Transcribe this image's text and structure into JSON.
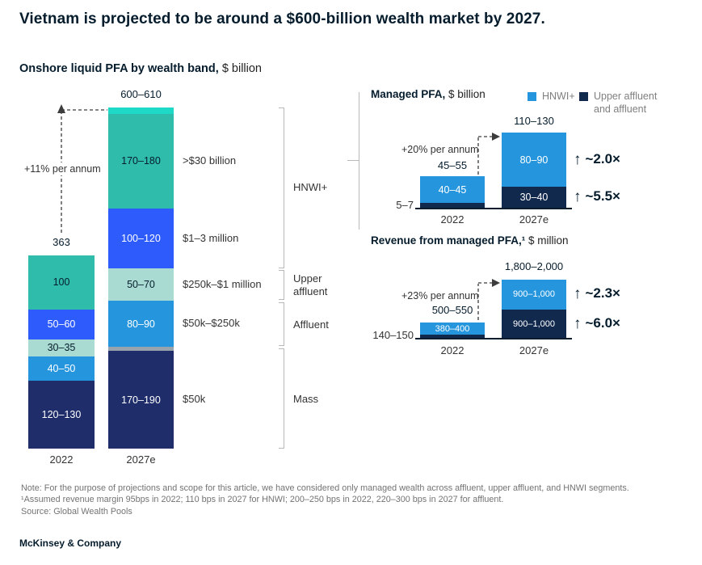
{
  "title": "Vietnam is projected to be around a $600-billion wealth market by 2027.",
  "subtitle": {
    "label": "Onshore liquid PFA by wealth band,",
    "unit": " $ billion"
  },
  "colors": {
    "teal": "#2fbcab",
    "bright_cyan": "#1ed9c6",
    "blue": "#2e5bfc",
    "mid_blue": "#2596dd",
    "pale_teal": "#a9dbd3",
    "gray": "#97a3ad",
    "navy": "#1f2d6b",
    "dark_navy": "#12294e"
  },
  "chart_data": [
    {
      "id": "onshore-liquid-pfa",
      "type": "bar",
      "stacked": true,
      "title": "Onshore liquid PFA by wealth band, $ billion",
      "growth_annotation": "+11% per annum",
      "categories": [
        "2022",
        "2027e"
      ],
      "bars": [
        {
          "category": "2022",
          "total_label": "363",
          "segments": [
            {
              "label": "120–130",
              "value": 125,
              "color": "navy",
              "text": "light"
            },
            {
              "label": "40–50",
              "value": 45,
              "color": "mid_blue",
              "text": "light"
            },
            {
              "label": "30–35",
              "value": 32,
              "color": "pale_teal",
              "text": "dark"
            },
            {
              "label": "50–60",
              "value": 55,
              "color": "blue",
              "text": "light"
            },
            {
              "label": "100",
              "value": 100,
              "color": "teal",
              "text": "dark"
            }
          ]
        },
        {
          "category": "2027e",
          "total_label": "600–610",
          "segments": [
            {
              "label": "170–190",
              "value": 180,
              "color": "navy",
              "text": "light",
              "band": "$50k"
            },
            {
              "label": "",
              "value": 8,
              "color": "gray"
            },
            {
              "label": "80–90",
              "value": 85,
              "color": "mid_blue",
              "text": "light",
              "band": "$50k–$250k"
            },
            {
              "label": "50–70",
              "value": 60,
              "color": "pale_teal",
              "text": "dark",
              "band": "$250k–$1 million"
            },
            {
              "label": "100–120",
              "value": 110,
              "color": "blue",
              "text": "light",
              "band": "$1–3 million"
            },
            {
              "label": "170–180",
              "value": 175,
              "color": "teal",
              "text": "dark",
              "band": ">$30 billion"
            },
            {
              "label": "",
              "value": 12,
              "color": "bright_cyan"
            }
          ]
        }
      ],
      "band_labels": [
        ">$30 billion",
        "$1–3 million",
        "$250k–$1 million",
        "$50k–$250k",
        "$50k"
      ],
      "group_brackets": [
        "HNWI+",
        "Upper affluent",
        "Affluent",
        "Mass"
      ]
    },
    {
      "id": "managed-pfa",
      "type": "bar",
      "stacked": true,
      "title": "Managed PFA,",
      "unit": " $ billion",
      "legend": [
        {
          "label": "HNWI+",
          "color": "mid_blue"
        },
        {
          "label": "Upper affluent and affluent",
          "color": "dark_navy"
        }
      ],
      "growth_annotation": "+20% per annum",
      "categories": [
        "2022",
        "2027e"
      ],
      "bars": [
        {
          "category": "2022",
          "total_label": "45–55",
          "outside_label": "5–7",
          "segments": [
            {
              "label": "",
              "value": 6,
              "color": "dark_navy"
            },
            {
              "label": "40–45",
              "value": 42,
              "color": "mid_blue",
              "text": "light"
            }
          ]
        },
        {
          "category": "2027e",
          "total_label": "110–130",
          "segments": [
            {
              "label": "30–40",
              "value": 35,
              "color": "dark_navy",
              "text": "light"
            },
            {
              "label": "80–90",
              "value": 85,
              "color": "mid_blue",
              "text": "light"
            }
          ]
        }
      ],
      "multipliers": [
        "~2.0×",
        "~5.5×"
      ]
    },
    {
      "id": "revenue-managed-pfa",
      "type": "bar",
      "stacked": true,
      "title": "Revenue from managed PFA,¹",
      "unit": " $ million",
      "growth_annotation": "+23% per annum",
      "categories": [
        "2022",
        "2027e"
      ],
      "bars": [
        {
          "category": "2022",
          "total_label": "500–550",
          "outside_label": "140–150",
          "segments": [
            {
              "label": "",
              "value": 145,
              "color": "dark_navy"
            },
            {
              "label": "380–400",
              "value": 390,
              "color": "mid_blue",
              "text": "light",
              "small": true
            }
          ]
        },
        {
          "category": "2027e",
          "total_label": "1,800–2,000",
          "segments": [
            {
              "label": "900–1,000",
              "value": 950,
              "color": "dark_navy",
              "text": "light",
              "small": true
            },
            {
              "label": "900–1,000",
              "value": 950,
              "color": "mid_blue",
              "text": "light",
              "small": true
            }
          ]
        }
      ],
      "multipliers": [
        "~2.3×",
        "~6.0×"
      ]
    }
  ],
  "footnotes": [
    "Note: For the purpose of projections and scope for this article, we have considered only managed wealth across affluent, upper affluent, and HNWI segments.",
    "¹Assumed revenue margin 95bps in 2022; 110 bps in 2027 for HNWI; 200–250 bps in 2022, 220–300 bps in 2027 for affluent.",
    "Source: Global Wealth Pools"
  ],
  "footer": "McKinsey & Company"
}
